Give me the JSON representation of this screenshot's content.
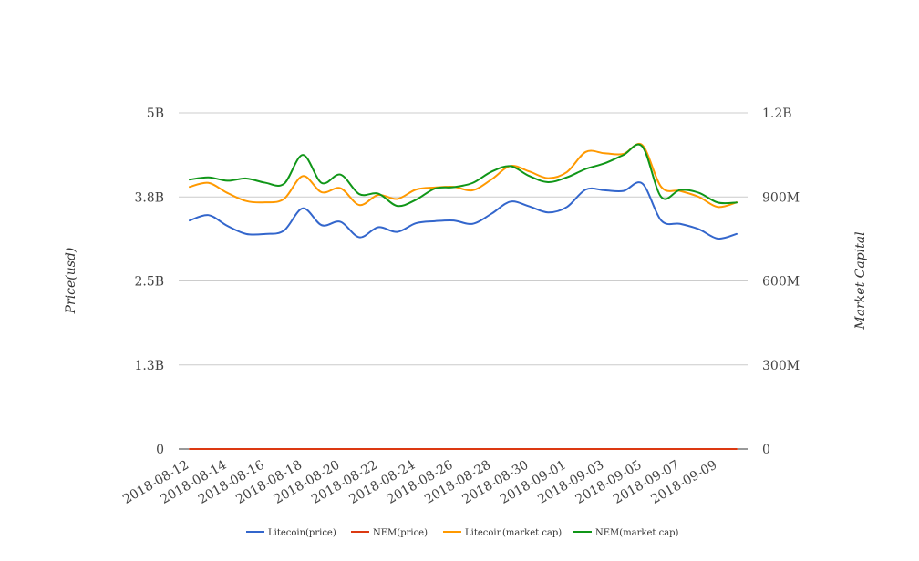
{
  "chart_data": {
    "type": "line",
    "ylabel_left": "Price(usd)",
    "ylabel_right": "Market Capital",
    "left_axis": {
      "ylim": [
        0,
        5000000000
      ],
      "ticks": [
        0,
        1250000000,
        2500000000,
        3750000000,
        5000000000
      ],
      "tick_labels": [
        "0",
        "1.3B",
        "2.5B",
        "3.8B",
        "5B"
      ]
    },
    "right_axis": {
      "ylim": [
        0,
        1200000000
      ],
      "ticks": [
        0,
        300000000,
        600000000,
        900000000,
        1200000000
      ],
      "tick_labels": [
        "0",
        "300M",
        "600M",
        "900M",
        "1.2B"
      ]
    },
    "x_tick_labels": [
      "2018-08-12",
      "2018-08-14",
      "2018-08-16",
      "2018-08-18",
      "2018-08-20",
      "2018-08-22",
      "2018-08-24",
      "2018-08-26",
      "2018-08-28",
      "2018-08-30",
      "2018-09-01",
      "2018-09-03",
      "2018-09-05",
      "2018-09-07",
      "2018-09-09"
    ],
    "x": [
      "2018-08-12",
      "2018-08-13",
      "2018-08-14",
      "2018-08-15",
      "2018-08-16",
      "2018-08-17",
      "2018-08-18",
      "2018-08-19",
      "2018-08-20",
      "2018-08-21",
      "2018-08-22",
      "2018-08-23",
      "2018-08-24",
      "2018-08-25",
      "2018-08-26",
      "2018-08-27",
      "2018-08-28",
      "2018-08-29",
      "2018-08-30",
      "2018-08-31",
      "2018-09-01",
      "2018-09-02",
      "2018-09-03",
      "2018-09-04",
      "2018-09-05",
      "2018-09-06",
      "2018-09-07",
      "2018-09-08",
      "2018-09-09",
      "2018-09-10"
    ],
    "grid": true,
    "legend_position": "bottom",
    "series": [
      {
        "name": "Litecoin(price)",
        "color": "#3366cc",
        "axis": "left",
        "values": [
          3400000000,
          3480000000,
          3320000000,
          3200000000,
          3200000000,
          3250000000,
          3580000000,
          3330000000,
          3380000000,
          3150000000,
          3300000000,
          3230000000,
          3360000000,
          3390000000,
          3400000000,
          3350000000,
          3500000000,
          3680000000,
          3610000000,
          3520000000,
          3600000000,
          3860000000,
          3850000000,
          3840000000,
          3950000000,
          3400000000,
          3350000000,
          3270000000,
          3130000000,
          3200000000
        ]
      },
      {
        "name": "NEM(price)",
        "color": "#dc3912",
        "axis": "left",
        "values": [
          0.0998,
          0.1012,
          0.0981,
          0.0955,
          0.0948,
          0.0942,
          0.1034,
          0.0971,
          0.0989,
          0.0937,
          0.0912,
          0.0886,
          0.0903,
          0.0921,
          0.0934,
          0.0937,
          0.0963,
          0.0995,
          0.0968,
          0.0948,
          0.0952,
          0.1007,
          0.1021,
          0.1043,
          0.1089,
          0.0936,
          0.0941,
          0.0925,
          0.0894,
          0.0896
        ]
      },
      {
        "name": "Litecoin(market cap)",
        "color": "#ff9900",
        "axis": "left",
        "values": [
          3900000000,
          3960000000,
          3810000000,
          3690000000,
          3670000000,
          3720000000,
          4060000000,
          3820000000,
          3880000000,
          3630000000,
          3780000000,
          3720000000,
          3860000000,
          3890000000,
          3900000000,
          3850000000,
          4010000000,
          4210000000,
          4130000000,
          4030000000,
          4120000000,
          4420000000,
          4400000000,
          4390000000,
          4520000000,
          3900000000,
          3840000000,
          3750000000,
          3600000000,
          3670000000
        ]
      },
      {
        "name": "NEM(market cap)",
        "color": "#109618",
        "axis": "right",
        "values": [
          962000000,
          970000000,
          958000000,
          966000000,
          951000000,
          947000000,
          1050000000,
          950000000,
          980000000,
          910000000,
          912000000,
          868000000,
          890000000,
          930000000,
          935000000,
          950000000,
          990000000,
          1010000000,
          975000000,
          953000000,
          970000000,
          1000000000,
          1020000000,
          1050000000,
          1080000000,
          900000000,
          925000000,
          915000000,
          880000000,
          880000000
        ]
      }
    ]
  }
}
